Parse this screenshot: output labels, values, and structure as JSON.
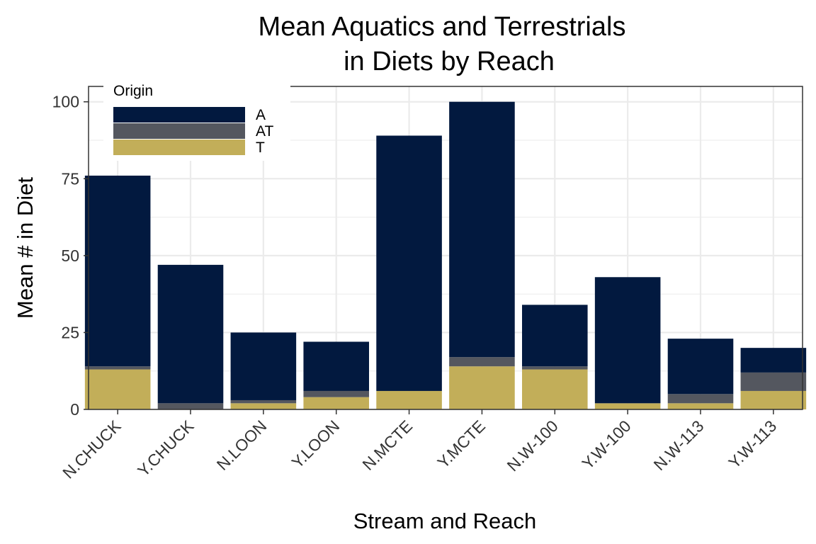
{
  "chart_data": {
    "type": "bar",
    "stacked": true,
    "title_lines": [
      "Mean Aquatics and Terrestrials",
      "in Diets by Reach"
    ],
    "xlabel": "Stream and Reach",
    "ylabel": "Mean # in Diet",
    "ylim": [
      0,
      105
    ],
    "yticks": [
      0,
      25,
      50,
      75,
      100
    ],
    "grid": true,
    "categories": [
      "N.CHUCK",
      "Y.CHUCK",
      "N.LOON",
      "Y.LOON",
      "N.MCTE",
      "Y.MCTE",
      "N.W-100",
      "Y.W-100",
      "N.W-113",
      "Y.W-113"
    ],
    "series": [
      {
        "name": "T",
        "color": "#C2AE59",
        "values": [
          13,
          0,
          2,
          4,
          6,
          14,
          13,
          2,
          2,
          6
        ]
      },
      {
        "name": "AT",
        "color": "#54575F",
        "values": [
          1,
          2,
          1,
          2,
          0,
          3,
          1,
          0,
          3,
          6
        ]
      },
      {
        "name": "A",
        "color": "#02193F",
        "values": [
          62,
          45,
          22,
          16,
          83,
          83,
          20,
          41,
          18,
          8
        ]
      }
    ],
    "legend": {
      "title": "Origin",
      "placement": "top-left inside",
      "entries": [
        "A",
        "AT",
        "T"
      ]
    }
  }
}
